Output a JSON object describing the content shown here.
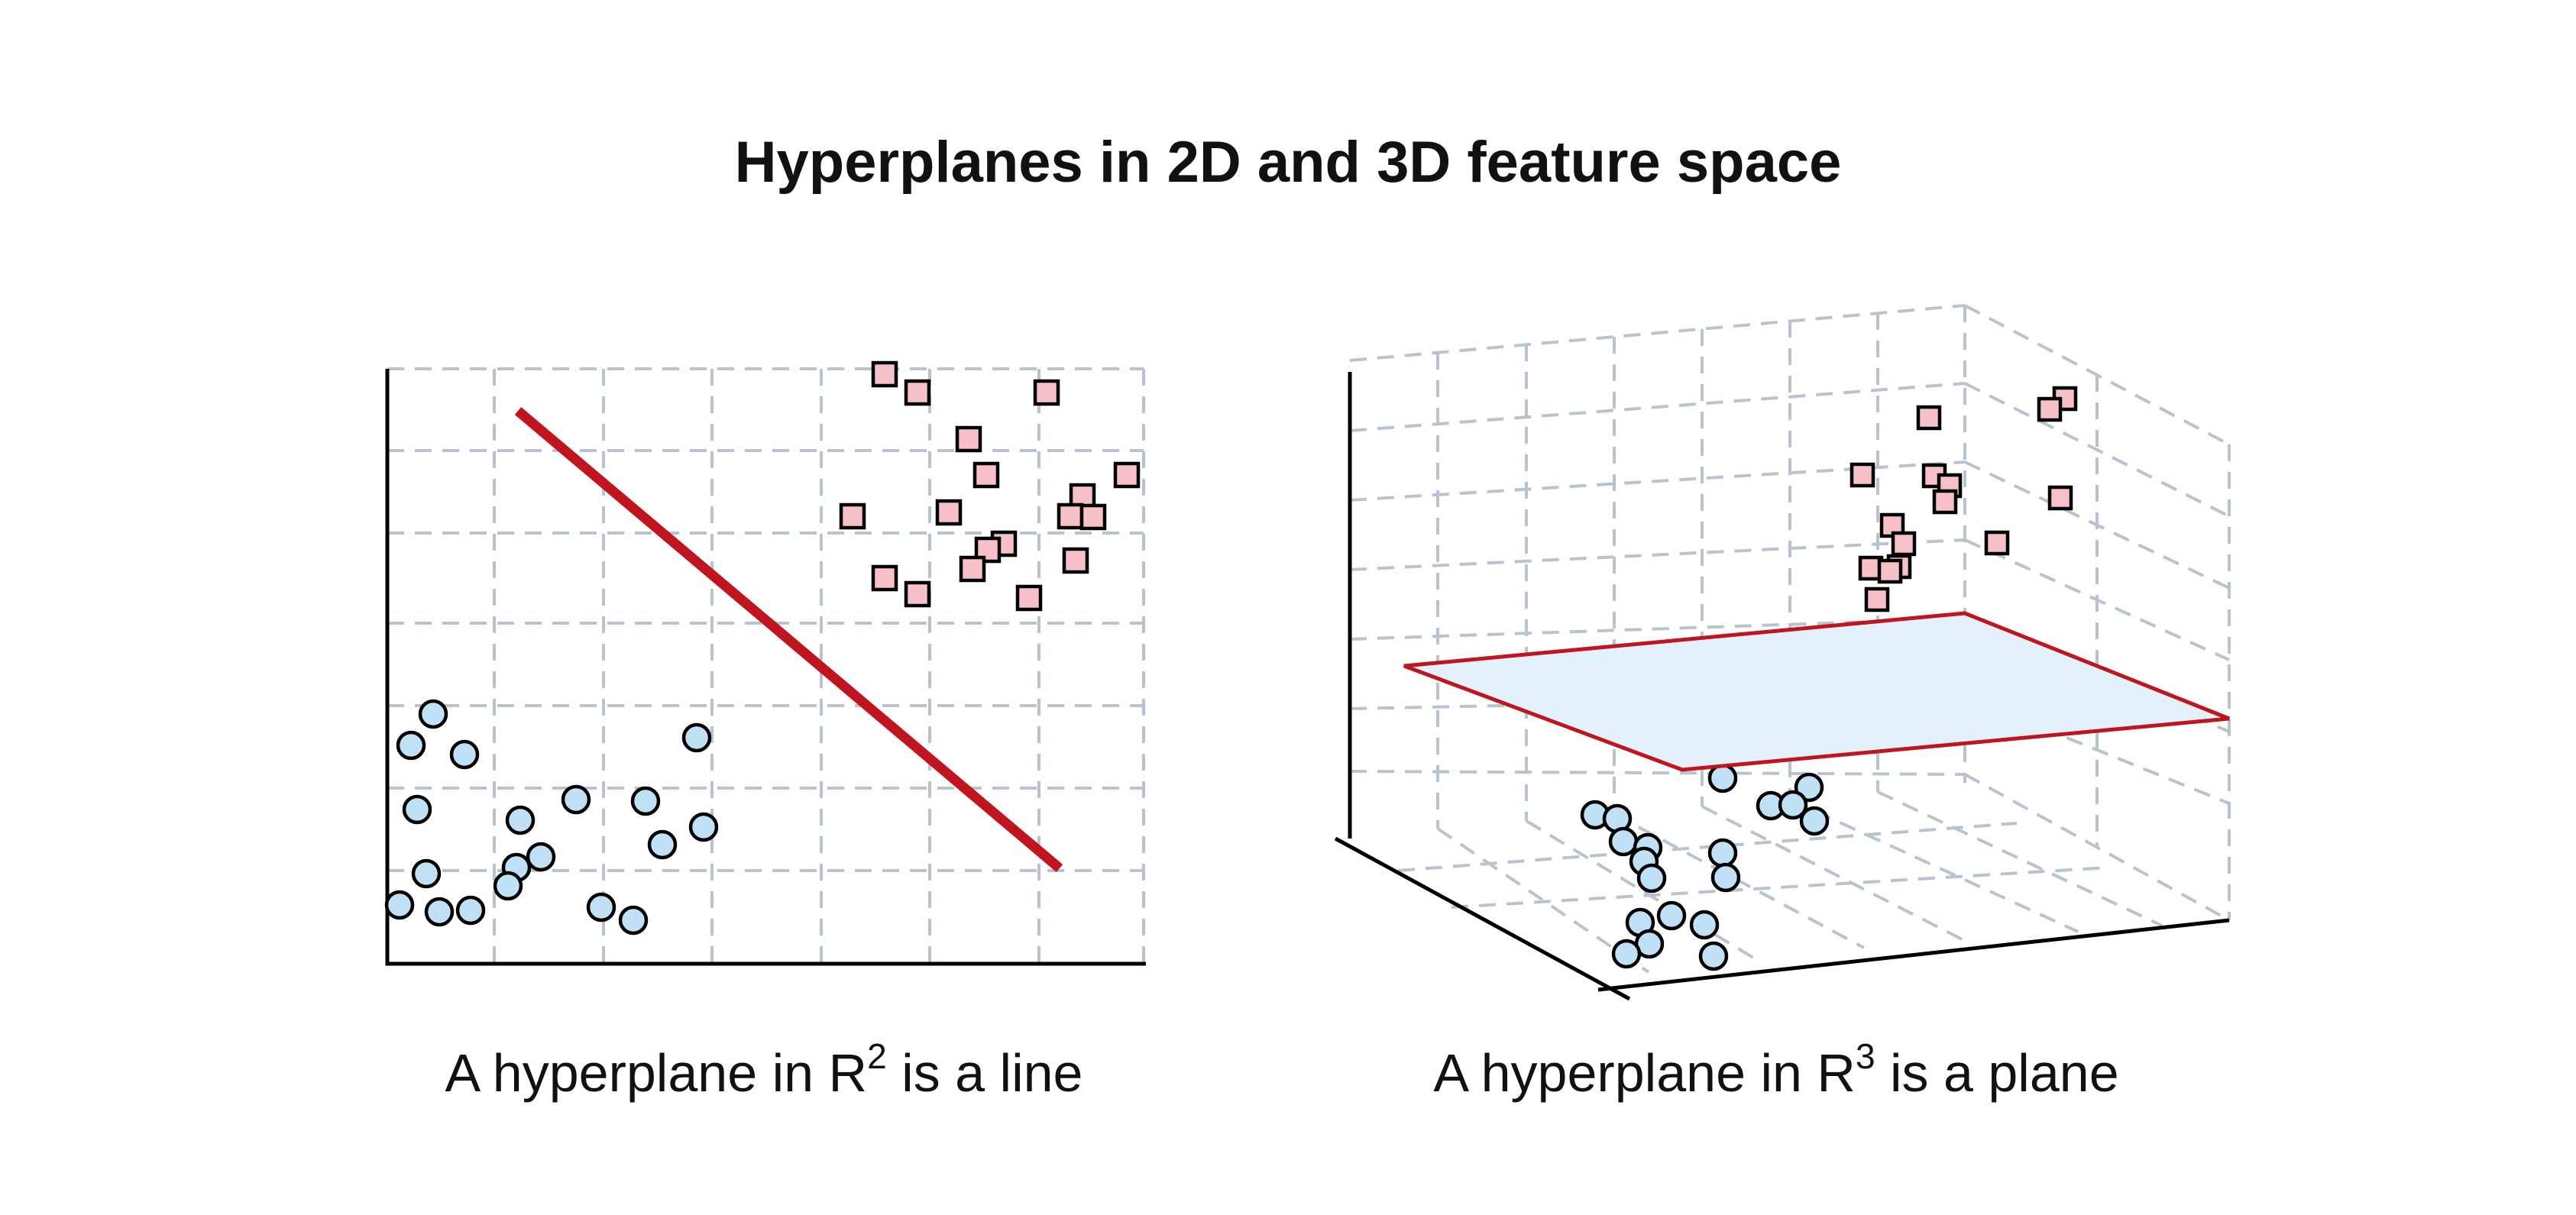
{
  "title": "Hyperplanes in 2D and 3D feature space",
  "panels": [
    {
      "caption_prefix": "A hyperplane in R",
      "caption_sup": "2",
      "caption_suffix": " is a line",
      "separator": "line"
    },
    {
      "caption_prefix": "A hyperplane in R",
      "caption_sup": "3",
      "caption_suffix": " is a plane",
      "separator": "plane"
    }
  ],
  "colors": {
    "class_a_fill": "#bfe0f5",
    "class_b_fill": "#f7c0c8",
    "hyperplane": "#c0141e",
    "plane_fill": "#e3f1fc",
    "grid": "#b7c3d1",
    "axis": "#000000"
  }
}
